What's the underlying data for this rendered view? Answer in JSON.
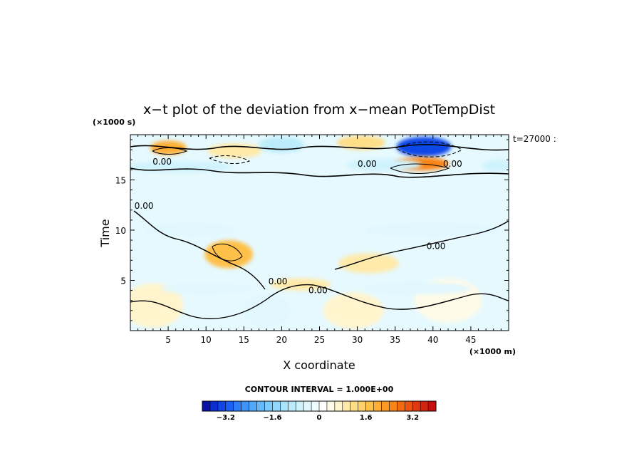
{
  "chart_data": {
    "type": "heatmap",
    "title": "x−t plot of the deviation from x−mean PotTempDist",
    "ylabel": "Time",
    "xlabel": "X coordinate",
    "y_unit": "(×1000 s)",
    "x_unit": "(×1000 m)",
    "time_label": "t=27000 :",
    "xlim": [
      0,
      50
    ],
    "ylim": [
      0,
      19.5
    ],
    "x_ticks": [
      5,
      10,
      15,
      20,
      25,
      30,
      35,
      40,
      45
    ],
    "y_ticks": [
      5,
      10,
      15
    ],
    "contour_interval_label": "CONTOUR INTERVAL = 1.000E+00",
    "contour_labels": [
      {
        "text": "0.00",
        "x": 4.2,
        "y": 16.8
      },
      {
        "text": "0.00",
        "x": 31.3,
        "y": 16.6
      },
      {
        "text": "0.00",
        "x": 42.6,
        "y": 16.6
      },
      {
        "text": "0.00",
        "x": 1.8,
        "y": 12.4
      },
      {
        "text": "0.00",
        "x": 40.4,
        "y": 8.4
      },
      {
        "text": "0.00",
        "x": 19.5,
        "y": 4.9
      },
      {
        "text": "0.00",
        "x": 24.8,
        "y": 4.0
      }
    ],
    "colorbar": {
      "range": [
        -4.0,
        4.0
      ],
      "ticks": [
        "−3.2",
        "−1.6",
        "0",
        "1.6",
        "3.2"
      ],
      "tick_values": [
        -3.2,
        -1.6,
        0,
        1.6,
        3.2
      ],
      "colors": [
        "#0a12a8",
        "#0c2ed0",
        "#1046e8",
        "#1a62f4",
        "#2c7ef8",
        "#3e94fb",
        "#52a8fc",
        "#66bafc",
        "#7ccbfc",
        "#92d8fc",
        "#a8e4fc",
        "#bcecfc",
        "#cff3fd",
        "#e0f8fe",
        "#eefcff",
        "#ffffff",
        "#fffbe8",
        "#fff4cc",
        "#ffeaaa",
        "#ffde88",
        "#ffd068",
        "#ffc04a",
        "#ffae34",
        "#fd9a24",
        "#f98418",
        "#f46c10",
        "#ec5210",
        "#e23a10",
        "#d42410",
        "#c41010"
      ]
    },
    "features": [
      {
        "x": 38.8,
        "y": 18.3,
        "rx": 3.6,
        "ry": 1.0,
        "value": -3.4
      },
      {
        "x": 38.5,
        "y": 16.6,
        "rx": 3.6,
        "ry": 0.65,
        "value": 2.6
      },
      {
        "x": 5.0,
        "y": 18.2,
        "rx": 2.4,
        "ry": 0.7,
        "value": 2.0
      },
      {
        "x": 30.5,
        "y": 18.7,
        "rx": 3.2,
        "ry": 0.7,
        "value": 1.3
      },
      {
        "x": 13.8,
        "y": 17.9,
        "rx": 3.6,
        "ry": 0.75,
        "value": 0.8
      },
      {
        "x": 20.0,
        "y": 18.5,
        "rx": 3.0,
        "ry": 0.8,
        "value": -0.9
      },
      {
        "x": 6.5,
        "y": 16.3,
        "rx": 7.0,
        "ry": 0.55,
        "value": -0.8
      },
      {
        "x": 33.5,
        "y": 16.5,
        "rx": 5.0,
        "ry": 0.6,
        "value": -0.7
      },
      {
        "x": 48.5,
        "y": 16.4,
        "rx": 2.0,
        "ry": 0.6,
        "value": -0.6
      },
      {
        "x": 13.0,
        "y": 7.6,
        "rx": 3.2,
        "ry": 1.4,
        "value": 1.6
      },
      {
        "x": 31.5,
        "y": 6.7,
        "rx": 4.0,
        "ry": 1.0,
        "value": 1.0
      },
      {
        "x": 22.5,
        "y": 4.6,
        "rx": 4.0,
        "ry": 0.6,
        "value": 0.8
      },
      {
        "x": 3.0,
        "y": 2.5,
        "rx": 4.0,
        "ry": 2.2,
        "value": 0.7
      },
      {
        "x": 29.5,
        "y": 2.0,
        "rx": 4.0,
        "ry": 1.8,
        "value": 0.6
      },
      {
        "x": 42.0,
        "y": 3.0,
        "rx": 4.5,
        "ry": 2.2,
        "value": 0.5
      },
      {
        "x": 8.0,
        "y": 10.0,
        "rx": 6.0,
        "ry": 0.6,
        "value": -0.35
      },
      {
        "x": 40.0,
        "y": 10.0,
        "rx": 9.0,
        "ry": 0.6,
        "value": -0.3
      },
      {
        "x": 10.0,
        "y": 4.2,
        "rx": 6.0,
        "ry": 0.5,
        "value": -0.5
      },
      {
        "x": 38.0,
        "y": 4.2,
        "rx": 7.0,
        "ry": 0.6,
        "value": -0.45
      },
      {
        "x": 18.0,
        "y": 2.0,
        "rx": 3.0,
        "ry": 1.6,
        "value": -0.4
      }
    ]
  }
}
